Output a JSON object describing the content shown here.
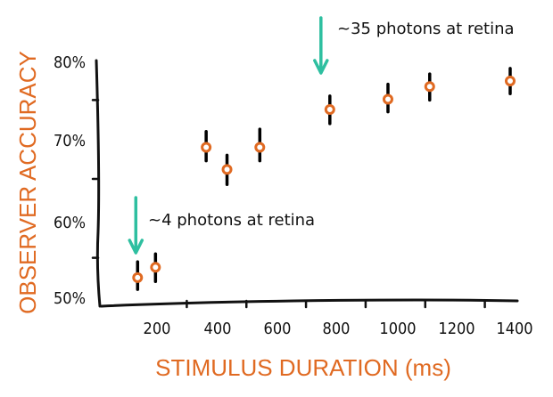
{
  "chart_data": {
    "type": "scatter",
    "xlabel": "STIMULUS DURATION (ms)",
    "ylabel": "OBSERVER ACCURACY",
    "xlim": [
      0,
      1450
    ],
    "ylim": [
      50,
      80
    ],
    "x_ticks": [
      "200",
      "400",
      "600",
      "800",
      "1000",
      "1200",
      "1400"
    ],
    "y_ticks": [
      "50%",
      "60%",
      "70%",
      "80%"
    ],
    "grid": false,
    "legend": "none",
    "series": [
      {
        "points": [
          {
            "x": 135,
            "y": 52.5,
            "err_low": 51.0,
            "err_high": 54.5
          },
          {
            "x": 195,
            "y": 53.8,
            "err_low": 52.0,
            "err_high": 55.5
          },
          {
            "x": 365,
            "y": 69.0,
            "err_low": 67.3,
            "err_high": 71.0
          },
          {
            "x": 435,
            "y": 66.2,
            "err_low": 64.3,
            "err_high": 68.0
          },
          {
            "x": 545,
            "y": 69.0,
            "err_low": 67.3,
            "err_high": 71.3
          },
          {
            "x": 780,
            "y": 73.8,
            "err_low": 72.0,
            "err_high": 75.5
          },
          {
            "x": 975,
            "y": 75.1,
            "err_low": 73.5,
            "err_high": 77.0
          },
          {
            "x": 1115,
            "y": 76.7,
            "err_low": 75.0,
            "err_high": 78.3
          },
          {
            "x": 1385,
            "y": 77.4,
            "err_low": 75.8,
            "err_high": 79.0
          }
        ]
      }
    ],
    "annotations": [
      {
        "text": "~35 photons at retina",
        "arrow_to_x": 780
      },
      {
        "text": "~4 photons at retina",
        "arrow_to_x": 135
      }
    ],
    "colors": {
      "marker": "#e06a22",
      "error_bar": "#000000",
      "arrow": "#2ebfa0",
      "axis": "#111111",
      "axis_title": "#e06a22"
    }
  }
}
